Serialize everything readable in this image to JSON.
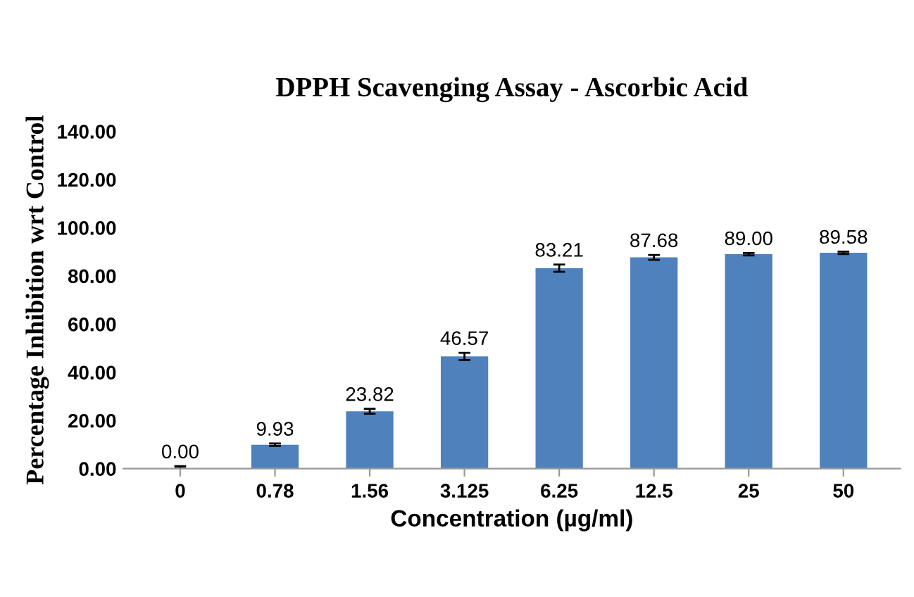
{
  "chart_data": {
    "type": "bar",
    "title": "DPPH Scavenging Assay - Ascorbic Acid",
    "xlabel": "Concentration (µg/ml)",
    "ylabel": "Percentage Inhibition wrt Control",
    "categories": [
      "0",
      "0.78",
      "1.56",
      "3.125",
      "6.25",
      "12.5",
      "25",
      "50"
    ],
    "values": [
      0.0,
      9.93,
      23.82,
      46.57,
      83.21,
      87.68,
      89.0,
      89.58
    ],
    "value_labels": [
      "0.00",
      "9.93",
      "23.82",
      "46.57",
      "83.21",
      "87.68",
      "89.00",
      "89.58"
    ],
    "errors": [
      [
        0,
        1.0
      ],
      0.5,
      1.0,
      1.5,
      1.5,
      1.0,
      0.5,
      0.5
    ],
    "color": "#4f81bd",
    "ylim": [
      0,
      140
    ],
    "yticks": [
      {
        "value": 0,
        "label": "0.00"
      },
      {
        "value": 20,
        "label": "20.00"
      },
      {
        "value": 40,
        "label": "40.00"
      },
      {
        "value": 60,
        "label": "60.00"
      },
      {
        "value": 80,
        "label": "80.00"
      },
      {
        "value": 100,
        "label": "100.00"
      },
      {
        "value": 120,
        "label": "120.00"
      },
      {
        "value": 140,
        "label": "140.00"
      }
    ],
    "grid": false,
    "legend": false
  }
}
